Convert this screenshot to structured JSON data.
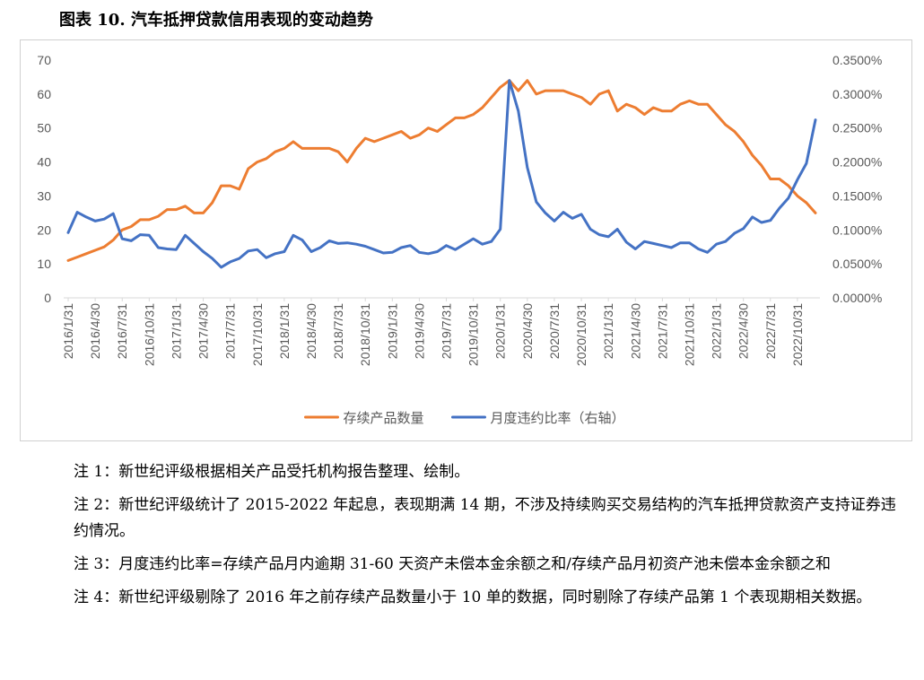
{
  "figure_title": "图表 10. 汽车抵押贷款信用表现的变动趋势",
  "notes": [
    "注 1：新世纪评级根据相关产品受托机构报告整理、绘制。",
    "注 2：新世纪评级统计了 2015-2022 年起息，表现期满 14 期，不涉及持续购买交易结构的汽车抵押贷款资产支持证券违约情况。",
    "注 3：月度违约比率=存续产品月内逾期 31-60 天资产未偿本金余额之和/存续产品月初资产池未偿本金余额之和",
    "注 4：新世纪评级剔除了 2016 年之前存续产品数量小于 10 单的数据，同时剔除了存续产品第 1 个表现期相关数据。"
  ],
  "chart_data": {
    "type": "line",
    "title": "",
    "x_tick_labels": [
      "2016/1/31",
      "2016/4/30",
      "2016/7/31",
      "2016/10/31",
      "2017/1/31",
      "2017/4/30",
      "2017/7/31",
      "2017/10/31",
      "2018/1/31",
      "2018/4/30",
      "2018/7/31",
      "2018/10/31",
      "2019/1/31",
      "2019/4/30",
      "2019/7/31",
      "2019/10/31",
      "2020/1/31",
      "2020/4/30",
      "2020/7/31",
      "2020/10/31",
      "2021/1/31",
      "2021/4/30",
      "2021/7/31",
      "2021/10/31",
      "2022/1/31",
      "2022/4/30",
      "2022/7/31",
      "2022/10/31"
    ],
    "y_left": {
      "lim": [
        0,
        70
      ],
      "ticks": [
        "0",
        "10",
        "20",
        "30",
        "40",
        "50",
        "60",
        "70"
      ]
    },
    "y_right": {
      "lim": [
        0,
        0.0035
      ],
      "ticks": [
        "0.0000%",
        "0.0500%",
        "0.1000%",
        "0.1500%",
        "0.2000%",
        "0.2500%",
        "0.3000%",
        "0.3500%"
      ]
    },
    "series": [
      {
        "name": "存续产品数量",
        "axis": "left",
        "color": "#ED7D31",
        "values": [
          11,
          12,
          13,
          14,
          15,
          17,
          20,
          21,
          23,
          23,
          24,
          26,
          26,
          27,
          25,
          25,
          28,
          33,
          33,
          32,
          38,
          40,
          41,
          43,
          44,
          46,
          44,
          44,
          44,
          44,
          43,
          40,
          44,
          47,
          46,
          47,
          48,
          49,
          47,
          48,
          50,
          49,
          51,
          53,
          53,
          54,
          56,
          59,
          62,
          64,
          61,
          64,
          60,
          61,
          61,
          61,
          60,
          59,
          57,
          60,
          61,
          55,
          57,
          56,
          54,
          56,
          55,
          55,
          57,
          58,
          57,
          57,
          54,
          51,
          49,
          46,
          42,
          39,
          35,
          35,
          33,
          30,
          28,
          25
        ]
      },
      {
        "name": "月度违约比率（右轴）",
        "axis": "right",
        "color": "#4472C4",
        "values": [
          0.00096,
          0.00126,
          0.00119,
          0.00113,
          0.00116,
          0.00124,
          0.00087,
          0.00084,
          0.00093,
          0.00092,
          0.00074,
          0.00072,
          0.00071,
          0.00092,
          0.0008,
          0.00068,
          0.00058,
          0.00045,
          0.00053,
          0.00058,
          0.00069,
          0.00071,
          0.00059,
          0.00065,
          0.00068,
          0.00092,
          0.00085,
          0.00068,
          0.00074,
          0.00084,
          0.0008,
          0.00081,
          0.00079,
          0.00076,
          0.00071,
          0.00066,
          0.00067,
          0.00074,
          0.00077,
          0.00067,
          0.00065,
          0.00068,
          0.00077,
          0.00071,
          0.00079,
          0.00087,
          0.00079,
          0.00083,
          0.00101,
          0.0032,
          0.00275,
          0.00192,
          0.00141,
          0.00125,
          0.00113,
          0.00126,
          0.00117,
          0.00123,
          0.00101,
          0.00093,
          0.0009,
          0.00101,
          0.00082,
          0.00072,
          0.00083,
          0.0008,
          0.00077,
          0.00074,
          0.00081,
          0.00081,
          0.00072,
          0.00067,
          0.00079,
          0.00083,
          0.00095,
          0.00102,
          0.00119,
          0.00111,
          0.00114,
          0.00132,
          0.00147,
          0.00174,
          0.00198,
          0.00262
        ]
      }
    ],
    "legend": {
      "position": "bottom"
    },
    "grid": false
  }
}
